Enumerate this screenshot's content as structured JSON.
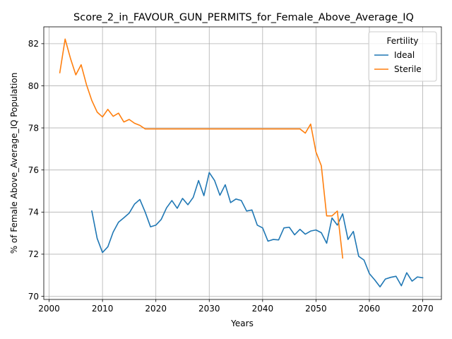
{
  "chart_data": {
    "type": "line",
    "title": "Score_2_in_FAVOUR_GUN_PERMITS_for_Female_Above_Average_IQ",
    "xlabel": "Years",
    "ylabel": "% of Female Above_Average_IQ Population",
    "xlim": [
      1999,
      2073.5
    ],
    "ylim": [
      69.85,
      82.8
    ],
    "xticks": [
      2000,
      2010,
      2020,
      2030,
      2040,
      2050,
      2060,
      2070
    ],
    "yticks": [
      70,
      72,
      74,
      76,
      78,
      80,
      82
    ],
    "grid": true,
    "legend": {
      "title": "Fertility",
      "position": "top-right"
    },
    "series": [
      {
        "name": "Ideal",
        "color": "#1f77b4",
        "x": [
          2008,
          2009,
          2010,
          2011,
          2012,
          2013,
          2014,
          2015,
          2016,
          2017,
          2018,
          2019,
          2020,
          2021,
          2022,
          2023,
          2024,
          2025,
          2026,
          2027,
          2028,
          2029,
          2030,
          2031,
          2032,
          2033,
          2034,
          2035,
          2036,
          2037,
          2038,
          2039,
          2040,
          2041,
          2042,
          2043,
          2044,
          2045,
          2046,
          2047,
          2048,
          2049,
          2050,
          2051,
          2052,
          2053,
          2054,
          2055,
          2056,
          2057,
          2058,
          2059,
          2060,
          2061,
          2062,
          2063,
          2064,
          2065,
          2066,
          2067,
          2068,
          2069,
          2070
        ],
        "values": [
          74.05,
          72.75,
          72.08,
          72.35,
          73.05,
          73.52,
          73.73,
          73.95,
          74.38,
          74.6,
          74.0,
          73.3,
          73.38,
          73.65,
          74.2,
          74.55,
          74.18,
          74.65,
          74.35,
          74.7,
          75.5,
          74.78,
          75.88,
          75.5,
          74.8,
          75.3,
          74.45,
          74.62,
          74.55,
          74.05,
          74.1,
          73.38,
          73.25,
          72.62,
          72.7,
          72.68,
          73.25,
          73.28,
          72.92,
          73.18,
          72.95,
          73.1,
          73.15,
          73.02,
          72.52,
          73.72,
          73.38,
          73.92,
          72.7,
          73.08,
          71.9,
          71.72,
          71.08,
          70.78,
          70.45,
          70.82,
          70.9,
          70.95,
          70.5,
          71.12,
          70.72,
          70.92,
          70.88
        ]
      },
      {
        "name": "Sterile",
        "color": "#ff7f0e",
        "x": [
          2002,
          2003,
          2004,
          2005,
          2006,
          2007,
          2008,
          2009,
          2010,
          2011,
          2012,
          2013,
          2014,
          2015,
          2016,
          2017,
          2018,
          2019,
          2020,
          2021,
          2022,
          2023,
          2024,
          2025,
          2026,
          2027,
          2028,
          2029,
          2030,
          2031,
          2032,
          2033,
          2034,
          2035,
          2036,
          2037,
          2038,
          2039,
          2040,
          2041,
          2042,
          2043,
          2044,
          2045,
          2046,
          2047,
          2048,
          2049,
          2050,
          2051,
          2052,
          2053,
          2054,
          2055
        ],
        "values": [
          80.62,
          82.22,
          81.3,
          80.52,
          81.0,
          80.05,
          79.3,
          78.75,
          78.52,
          78.88,
          78.55,
          78.7,
          78.28,
          78.4,
          78.22,
          78.12,
          77.95,
          77.95,
          77.95,
          77.95,
          77.95,
          77.95,
          77.95,
          77.95,
          77.95,
          77.95,
          77.95,
          77.95,
          77.95,
          77.95,
          77.95,
          77.95,
          77.95,
          77.95,
          77.95,
          77.95,
          77.95,
          77.95,
          77.95,
          77.95,
          77.95,
          77.95,
          77.95,
          77.95,
          77.95,
          77.95,
          77.75,
          78.18,
          76.85,
          76.2,
          73.82,
          73.82,
          74.05,
          71.82
        ]
      }
    ]
  }
}
